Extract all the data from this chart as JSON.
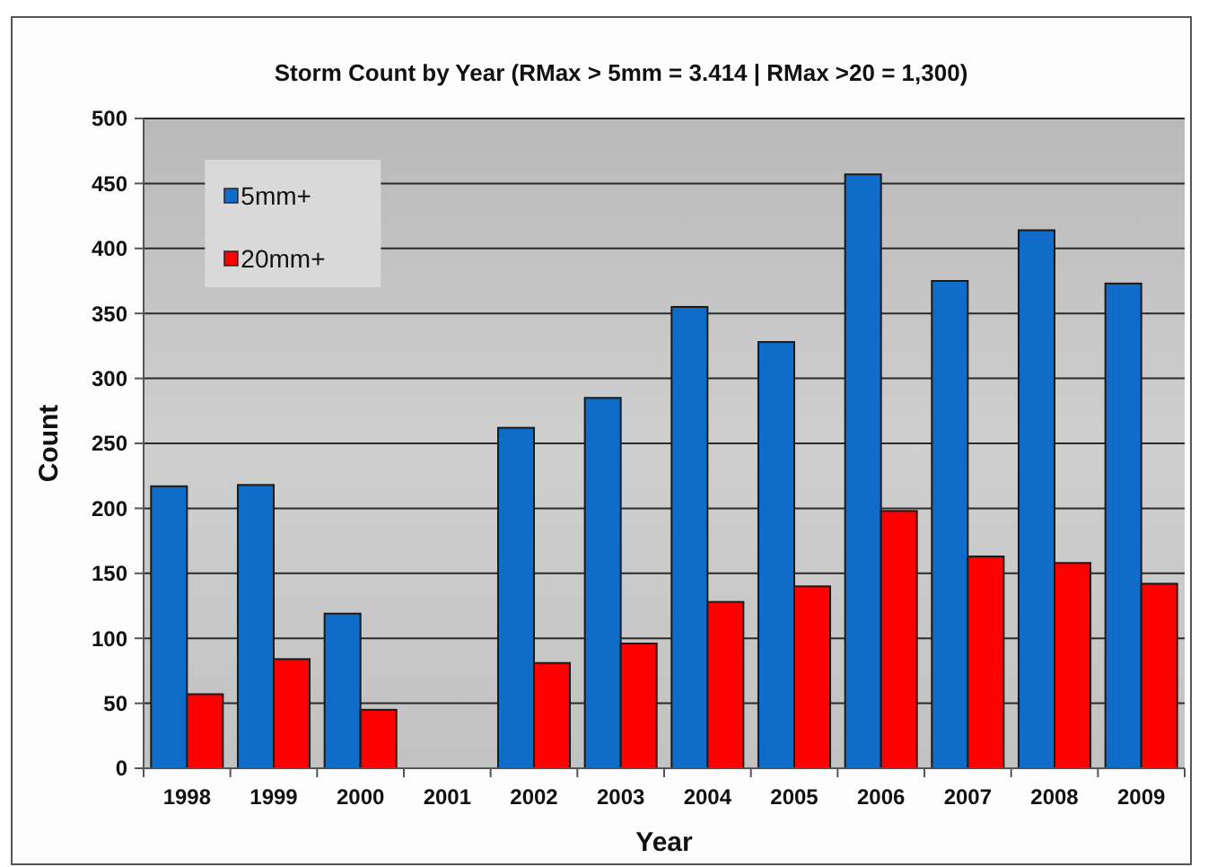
{
  "chart_data": {
    "type": "bar",
    "title": "Storm Count by Year (RMax > 5mm = 3.414 | RMax >20 = 1,300)",
    "xlabel": "Year",
    "ylabel": "Count",
    "categories": [
      "1998",
      "1999",
      "2000",
      "2001",
      "2002",
      "2003",
      "2004",
      "2005",
      "2006",
      "2007",
      "2008",
      "2009"
    ],
    "series": [
      {
        "name": "5mm+",
        "color": "#0f6cc8",
        "values": [
          217,
          218,
          119,
          null,
          262,
          285,
          355,
          328,
          457,
          375,
          414,
          373
        ]
      },
      {
        "name": "20mm+",
        "color": "#ff0000",
        "values": [
          57,
          84,
          45,
          null,
          81,
          96,
          128,
          140,
          198,
          163,
          158,
          142
        ]
      }
    ],
    "ylim": [
      0,
      500
    ],
    "yticks": [
      0,
      50,
      100,
      150,
      200,
      250,
      300,
      350,
      400,
      450,
      500
    ],
    "grid": "y",
    "legend": "top left"
  }
}
